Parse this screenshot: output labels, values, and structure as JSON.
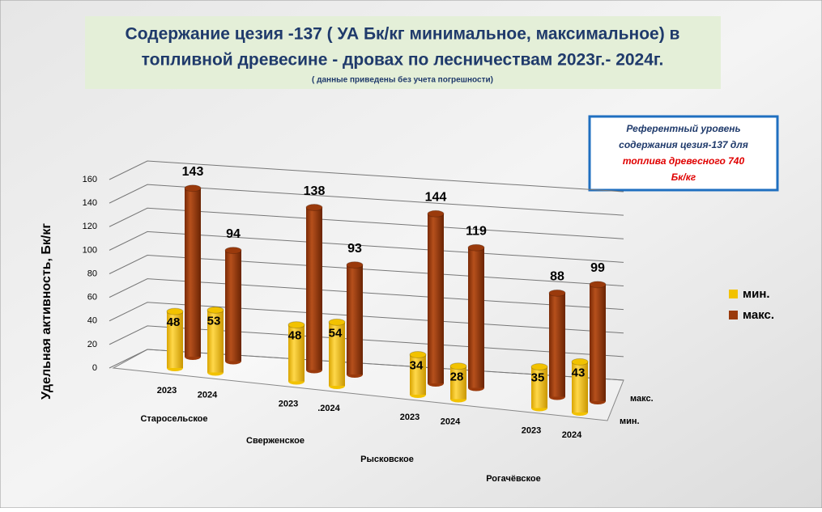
{
  "chart_data": {
    "type": "bar3d",
    "title": [
      "Содержание цезия -137 ( УА Бк/кг минимальное, максимальное) в",
      "топливной древесине - дровах по лесничествам  2023г.- 2024г."
    ],
    "subtitle": "( данные приведены без учета погрешности)",
    "annotation": {
      "lines": [
        "Референтный уровень",
        "содержания  цезия-137 для"
      ],
      "highlight_lines": [
        "топлива древесного 740",
        "Бк/кг"
      ]
    },
    "ylabel": "Удельная активность,  Бк/кг",
    "categories": [
      "2023",
      "2024",
      "2023",
      ".2024",
      "2023",
      "2024",
      "2023",
      "2024"
    ],
    "groups": [
      "Старосельское",
      "Сверженское",
      "Рысковское",
      "Рогачёвское"
    ],
    "series": [
      {
        "name": "мин.",
        "color": "#f2c200",
        "values": [
          48,
          53,
          48,
          54,
          34,
          28,
          35,
          43
        ]
      },
      {
        "name": "макс.",
        "color": "#9a3a0c",
        "values": [
          143,
          94,
          138,
          93,
          144,
          119,
          88,
          99
        ]
      }
    ],
    "ylim": [
      0,
      160
    ],
    "yticks": [
      0,
      20,
      40,
      60,
      80,
      100,
      120,
      140,
      160
    ],
    "grid": true
  }
}
